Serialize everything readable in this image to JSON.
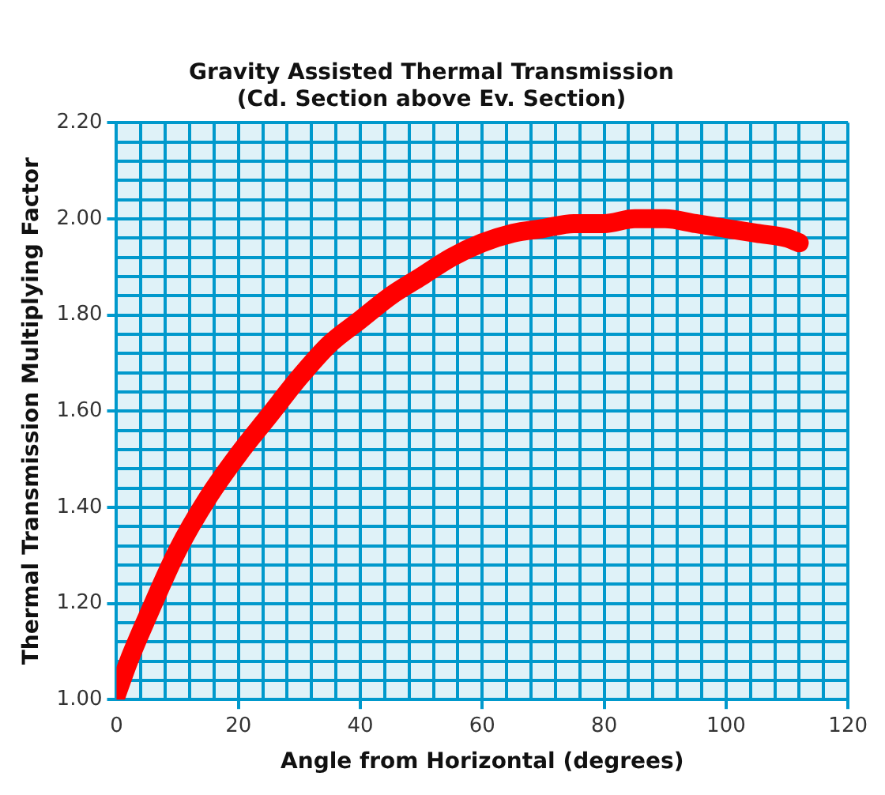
{
  "chart_data": {
    "type": "line",
    "title": "Gravity Assisted Thermal Transmission",
    "subtitle": "(Cd. Section above Ev. Section)",
    "xlabel": "Angle from Horizontal (degrees)",
    "ylabel": "Thermal Transmission Multiplying Factor",
    "series": [
      {
        "color": "#ff0000",
        "x": [
          0,
          2,
          5,
          10,
          15,
          20,
          25,
          30,
          35,
          40,
          45,
          50,
          55,
          60,
          65,
          70,
          75,
          80,
          85,
          90,
          95,
          100,
          105,
          110,
          112
        ],
        "values": [
          1.01,
          1.08,
          1.17,
          1.31,
          1.42,
          1.51,
          1.59,
          1.67,
          1.74,
          1.79,
          1.84,
          1.88,
          1.92,
          1.95,
          1.97,
          1.98,
          1.99,
          1.99,
          2.0,
          2.0,
          1.99,
          1.98,
          1.97,
          1.96,
          1.95
        ]
      }
    ],
    "xlim": [
      0,
      120
    ],
    "ylim": [
      1.0,
      2.2
    ],
    "xticks": [
      0,
      {
        "value": 4,
        "label": null
      },
      {
        "value": 8,
        "label": null
      },
      {
        "value": 12,
        "label": null
      },
      {
        "value": 16,
        "label": null
      },
      20,
      {
        "value": 24,
        "label": null
      },
      {
        "value": 28,
        "label": null
      },
      {
        "value": 32,
        "label": null
      },
      {
        "value": 36,
        "label": null
      },
      40,
      {
        "value": 44,
        "label": null
      },
      {
        "value": 48,
        "label": null
      },
      {
        "value": 52,
        "label": null
      },
      {
        "value": 56,
        "label": null
      },
      60,
      {
        "value": 64,
        "label": null
      },
      {
        "value": 68,
        "label": null
      },
      {
        "value": 72,
        "label": null
      },
      {
        "value": 76,
        "label": null
      },
      80,
      {
        "value": 84,
        "label": null
      },
      {
        "value": 88,
        "label": null
      },
      {
        "value": 92,
        "label": null
      },
      {
        "value": 96,
        "label": null
      },
      100,
      {
        "value": 104,
        "label": null
      },
      {
        "value": 108,
        "label": null
      },
      {
        "value": 112,
        "label": null
      },
      {
        "value": 116,
        "label": null
      },
      120
    ],
    "yticks": [
      {
        "value": 1.0,
        "label": "1.00"
      },
      {
        "value": 1.04,
        "label": null
      },
      {
        "value": 1.08,
        "label": null
      },
      {
        "value": 1.12,
        "label": null
      },
      {
        "value": 1.16,
        "label": null
      },
      {
        "value": 1.2,
        "label": "1.20"
      },
      {
        "value": 1.24,
        "label": null
      },
      {
        "value": 1.28,
        "label": null
      },
      {
        "value": 1.32,
        "label": null
      },
      {
        "value": 1.36,
        "label": null
      },
      {
        "value": 1.4,
        "label": "1.40"
      },
      {
        "value": 1.44,
        "label": null
      },
      {
        "value": 1.48,
        "label": null
      },
      {
        "value": 1.52,
        "label": null
      },
      {
        "value": 1.56,
        "label": null
      },
      {
        "value": 1.6,
        "label": "1.60"
      },
      {
        "value": 1.64,
        "label": null
      },
      {
        "value": 1.68,
        "label": null
      },
      {
        "value": 1.72,
        "label": null
      },
      {
        "value": 1.76,
        "label": null
      },
      {
        "value": 1.8,
        "label": "1.80"
      },
      {
        "value": 1.84,
        "label": null
      },
      {
        "value": 1.88,
        "label": null
      },
      {
        "value": 1.92,
        "label": null
      },
      {
        "value": 1.96,
        "label": null
      },
      {
        "value": 2.0,
        "label": "2.00"
      },
      {
        "value": 2.04,
        "label": null
      },
      {
        "value": 2.08,
        "label": null
      },
      {
        "value": 2.12,
        "label": null
      },
      {
        "value": 2.16,
        "label": null
      },
      {
        "value": 2.2,
        "label": "2.20"
      }
    ],
    "grid": true,
    "legend": false,
    "marker": "none",
    "line_style": "solid"
  }
}
